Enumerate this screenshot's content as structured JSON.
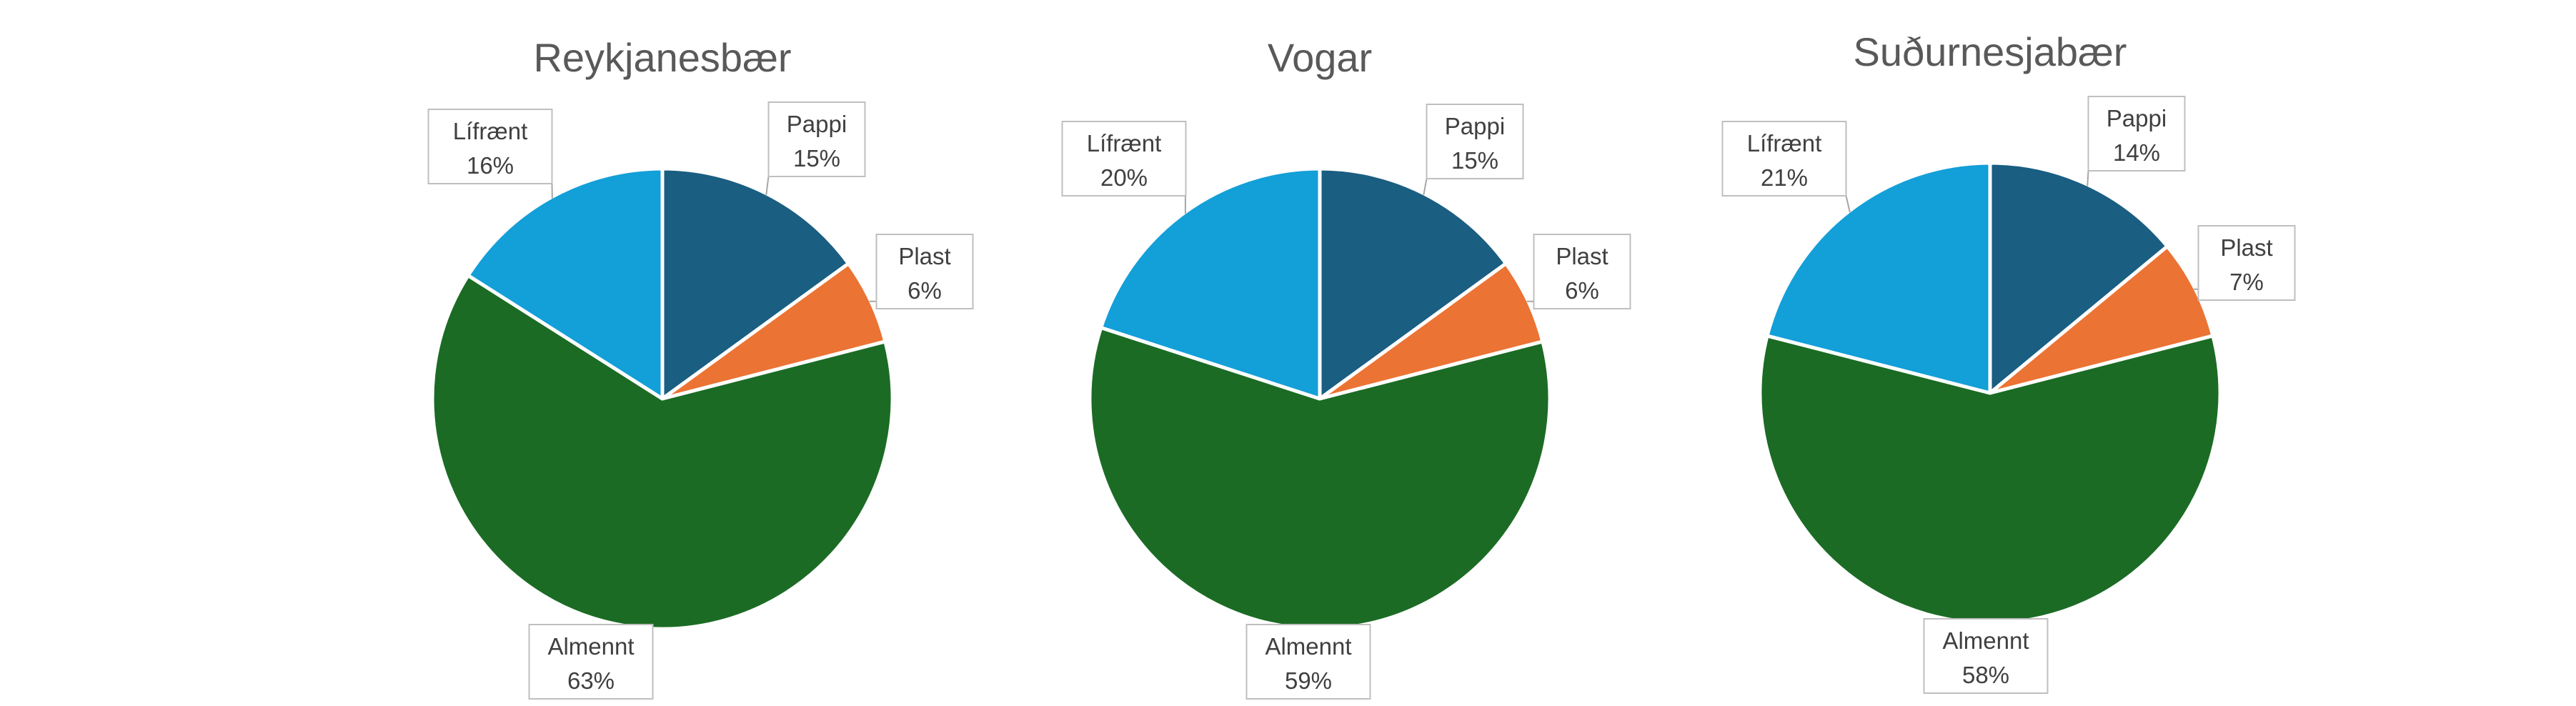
{
  "chart_data": [
    {
      "type": "pie",
      "title": "Reykjanesbær",
      "categories": [
        "Pappi",
        "Plast",
        "Almennt",
        "Lífrænt"
      ],
      "values": [
        15,
        6,
        63,
        16
      ],
      "value_labels": [
        "15%",
        "6%",
        "63%",
        "16%"
      ],
      "colors": [
        "#1a5e82",
        "#eb7334",
        "#1b6b24",
        "#139fd8"
      ]
    },
    {
      "type": "pie",
      "title": "Vogar",
      "categories": [
        "Pappi",
        "Plast",
        "Almennt",
        "Lífrænt"
      ],
      "values": [
        15,
        6,
        59,
        20
      ],
      "value_labels": [
        "15%",
        "6%",
        "59%",
        "20%"
      ],
      "colors": [
        "#1a5e82",
        "#eb7334",
        "#1b6b24",
        "#139fd8"
      ]
    },
    {
      "type": "pie",
      "title": "Suðurnesjabær",
      "categories": [
        "Pappi",
        "Plast",
        "Almennt",
        "Lífrænt"
      ],
      "values": [
        14,
        7,
        58,
        21
      ],
      "value_labels": [
        "14%",
        "7%",
        "58%",
        "21%"
      ],
      "colors": [
        "#1a5e82",
        "#eb7334",
        "#1b6b24",
        "#139fd8"
      ]
    }
  ]
}
